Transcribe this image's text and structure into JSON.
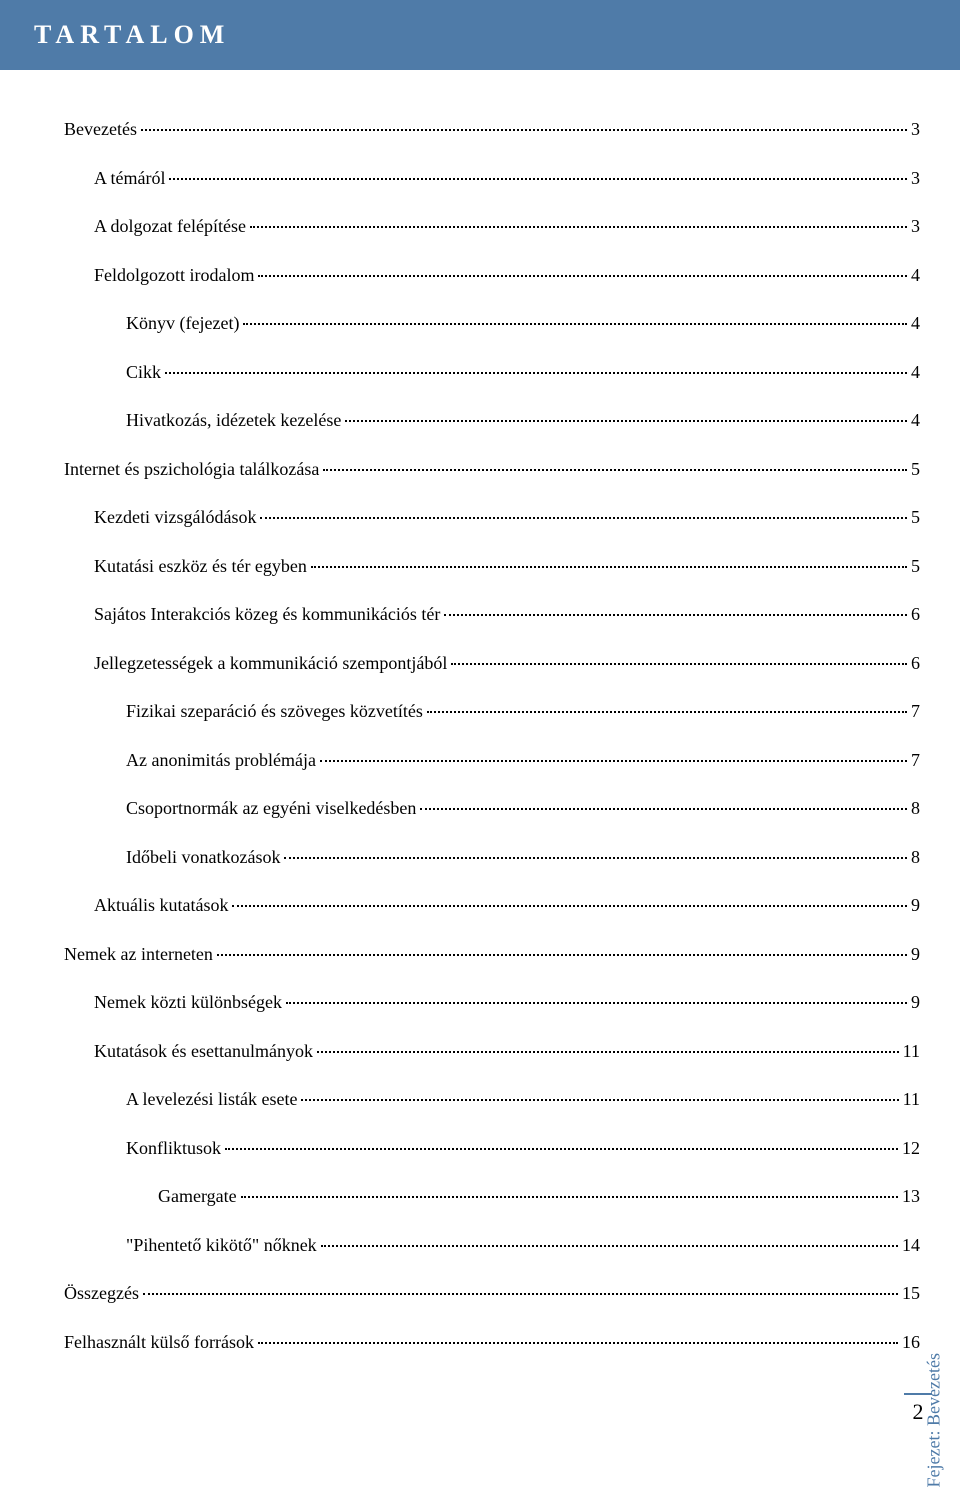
{
  "header": {
    "title": "TARTALOM"
  },
  "toc": [
    {
      "label": "Bevezetés",
      "page": "3",
      "indent": 0
    },
    {
      "label": "A témáról",
      "page": "3",
      "indent": 1
    },
    {
      "label": "A dolgozat felépítése",
      "page": "3",
      "indent": 1
    },
    {
      "label": "Feldolgozott irodalom",
      "page": "4",
      "indent": 1
    },
    {
      "label": "Könyv (fejezet)",
      "page": "4",
      "indent": 2
    },
    {
      "label": "Cikk",
      "page": "4",
      "indent": 2
    },
    {
      "label": "Hivatkozás, idézetek kezelése",
      "page": "4",
      "indent": 2
    },
    {
      "label": "Internet és pszichológia találkozása",
      "page": "5",
      "indent": 0
    },
    {
      "label": "Kezdeti vizsgálódások",
      "page": "5",
      "indent": 1
    },
    {
      "label": "Kutatási eszköz és tér egyben",
      "page": "5",
      "indent": 1
    },
    {
      "label": "Sajátos Interakciós közeg és kommunikációs tér",
      "page": "6",
      "indent": 1
    },
    {
      "label": "Jellegzetességek a kommunikáció szempontjából",
      "page": "6",
      "indent": 1
    },
    {
      "label": "Fizikai szeparáció és szöveges közvetítés",
      "page": "7",
      "indent": 2
    },
    {
      "label": "Az anonimitás problémája",
      "page": "7",
      "indent": 2
    },
    {
      "label": "Csoportnormák az egyéni viselkedésben",
      "page": "8",
      "indent": 2
    },
    {
      "label": "Időbeli vonatkozások",
      "page": "8",
      "indent": 2
    },
    {
      "label": "Aktuális kutatások",
      "page": "9",
      "indent": 1
    },
    {
      "label": "Nemek az interneten",
      "page": "9",
      "indent": 0
    },
    {
      "label": "Nemek közti különbségek",
      "page": "9",
      "indent": 1
    },
    {
      "label": "Kutatások és esettanulmányok",
      "page": "11",
      "indent": 1
    },
    {
      "label": "A levelezési listák esete",
      "page": "11",
      "indent": 2
    },
    {
      "label": "Konfliktusok",
      "page": "12",
      "indent": 2
    },
    {
      "label": "Gamergate",
      "page": "13",
      "indent": 3
    },
    {
      "label": "\"Pihentető kikötő\" nőknek",
      "page": "14",
      "indent": 2
    },
    {
      "label": "Összegzés",
      "page": "15",
      "indent": 0
    },
    {
      "label": "Felhasznált külső források",
      "page": "16",
      "indent": 0
    }
  ],
  "sidebar": {
    "prefix": "Fejezet:",
    "chapter": "Bevezetés"
  },
  "page_number": "2",
  "colors": {
    "header_bg": "#4f7ba8",
    "header_text": "#ffffff",
    "body_text": "#000000",
    "accent": "#4f7ba8",
    "background": "#ffffff"
  },
  "typography": {
    "body_fontsize_pt": 13,
    "header_fontsize_pt": 20,
    "font_family": "serif"
  }
}
